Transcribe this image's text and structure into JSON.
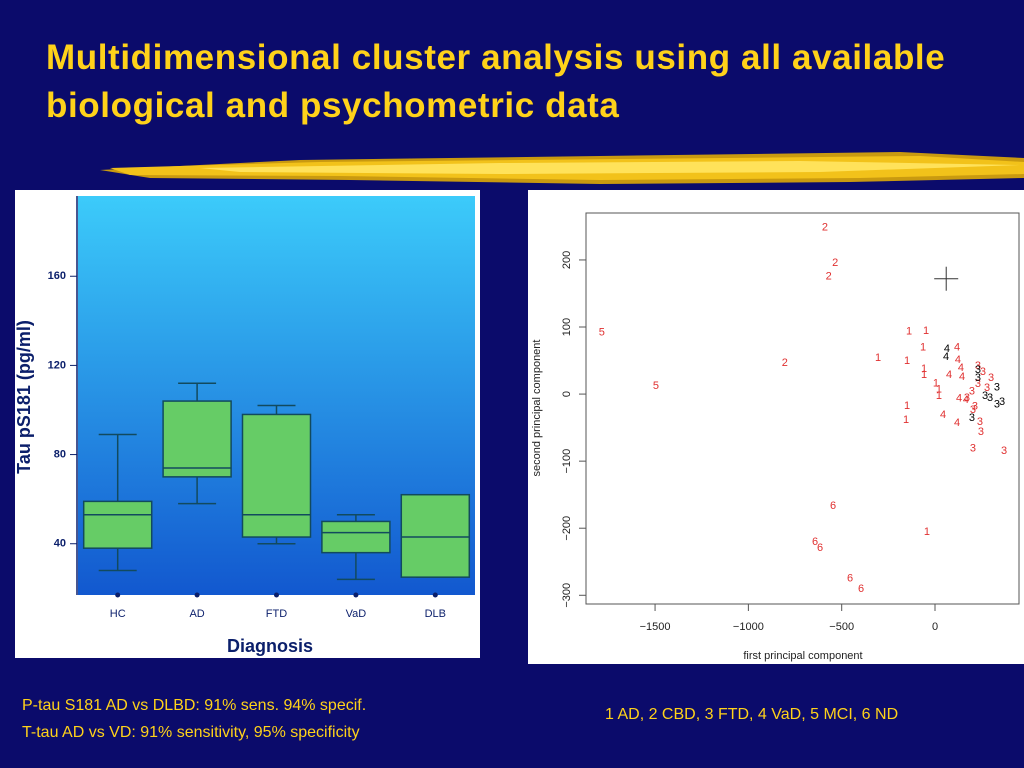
{
  "title": "Multidimensional cluster analysis using all available biological and psychometric data",
  "notes": [
    "P-tau S181 AD vs DLBD: 91% sens. 94% specif.",
    "T-tau AD vs VD: 91% sensitivity, 95% specificity"
  ],
  "key": "1 AD, 2 CBD, 3 FTD, 4 VaD, 5 MCI, 6 ND",
  "chart_data": [
    {
      "type": "box",
      "y_label": "Tau pS181 (pg/ml)",
      "x_label": "Diagnosis",
      "categories": [
        "HC",
        "AD",
        "FTD",
        "VaD",
        "DLB"
      ],
      "min": [
        28,
        58,
        40,
        24,
        25
      ],
      "q1": [
        38,
        70,
        43,
        36,
        25
      ],
      "median": [
        53,
        74,
        53,
        45,
        43
      ],
      "q3": [
        59,
        104,
        98,
        50,
        62
      ],
      "max": [
        89,
        112,
        102,
        53,
        62
      ],
      "color": "#66cc66",
      "ylim": [
        17,
        196
      ],
      "yticks": [
        40,
        80,
        120,
        160
      ]
    },
    {
      "type": "scatter",
      "x_label": "first principal component",
      "y_label": "second principal component",
      "xlim": [
        -1870,
        450
      ],
      "ylim": [
        -313,
        270
      ],
      "xticks": [
        {
          "value": -1500,
          "label": "−1500"
        },
        {
          "value": -1000,
          "label": "−1000"
        },
        {
          "value": -500,
          "label": "−500"
        },
        0
      ],
      "yticks": [
        {
          "value": -300,
          "label": "−300"
        },
        {
          "value": -200,
          "label": "−200"
        },
        {
          "value": -100,
          "label": "−100"
        },
        0,
        100,
        200
      ],
      "series": [
        {
          "color": "#e03030",
          "x": [
            -590,
            -535,
            -570,
            -1785,
            -1495,
            -805,
            -139,
            -48,
            -64,
            -305,
            -150,
            -59,
            -59,
            5,
            21,
            21,
            -150,
            -155,
            -43,
            118,
            123,
            75,
            139,
            145,
            129,
            166,
            43,
            118,
            230,
            257,
            300,
            230,
            279,
            198,
            171,
            214,
            203,
            241,
            246,
            203,
            370,
            -546,
            -643,
            -616,
            -455,
            -396
          ],
          "y": [
            248,
            195,
            175,
            92,
            12,
            46,
            93,
            94,
            69,
            54,
            49,
            37,
            28,
            16,
            7,
            -3,
            -18,
            -39,
            -206,
            69,
            51,
            28,
            39,
            25,
            -7,
            -9,
            -31,
            -43,
            42,
            33,
            24,
            15,
            9,
            4,
            -6,
            -19,
            -24,
            -42,
            -57,
            -81,
            -85,
            -167,
            -221,
            -230,
            -275,
            -291
          ],
          "labels": [
            "2",
            "2",
            "2",
            "5",
            "5",
            "2",
            "1",
            "1",
            "1",
            "1",
            "1",
            "1",
            "1",
            "1",
            "1",
            "1",
            "1",
            "1",
            "1",
            "4",
            "4",
            "4",
            "4",
            "4",
            "4",
            "4",
            "4",
            "4",
            "3",
            "3",
            "3",
            "3",
            "3",
            "3",
            "3",
            "3",
            "3",
            "3",
            "3",
            "3",
            "3",
            "6",
            "6",
            "6",
            "6",
            "6"
          ]
        },
        {
          "color": "#000000",
          "x": [
            64,
            59,
            230,
            230,
            332,
            295,
            359,
            332,
            198,
            268
          ],
          "y": [
            67,
            55,
            36,
            24,
            10,
            -6,
            -12,
            -16,
            -36,
            -3
          ],
          "labels": [
            "4",
            "4",
            "3",
            "3",
            "3",
            "3",
            "3",
            "3",
            "3",
            "3"
          ]
        }
      ],
      "marker": {
        "x": 60,
        "y": 172
      }
    }
  ]
}
